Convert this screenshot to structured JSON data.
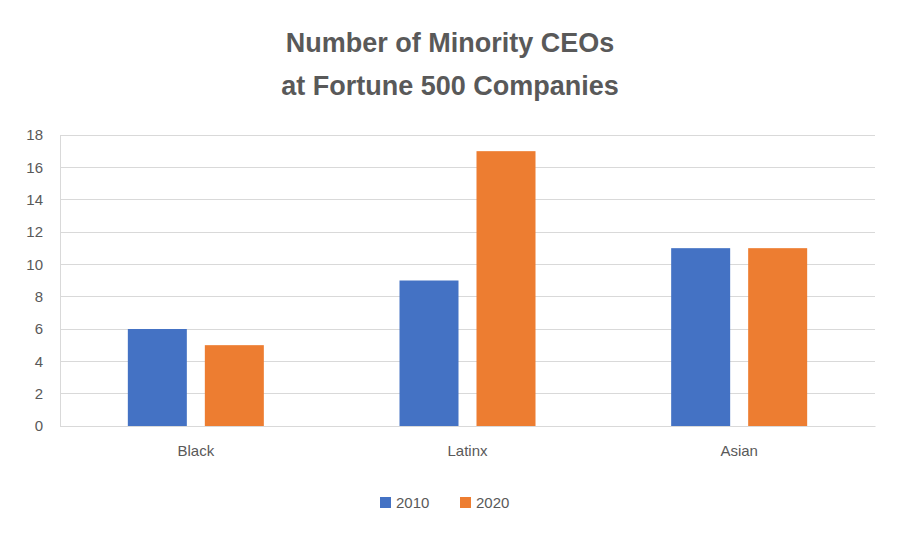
{
  "chart_data": {
    "type": "bar",
    "title": "Number of Minority CEOs\nat Fortune 500 Companies",
    "categories": [
      "Black",
      "Latinx",
      "Asian"
    ],
    "series": [
      {
        "name": "2010",
        "color": "#4472c4",
        "values": [
          6,
          9,
          11
        ]
      },
      {
        "name": "2020",
        "color": "#ed7d31",
        "values": [
          5,
          17,
          11
        ]
      }
    ],
    "ylim": [
      0,
      18
    ],
    "yticks": [
      0,
      2,
      4,
      6,
      8,
      10,
      12,
      14,
      16,
      18
    ],
    "grid": true,
    "legend": "bottom"
  }
}
